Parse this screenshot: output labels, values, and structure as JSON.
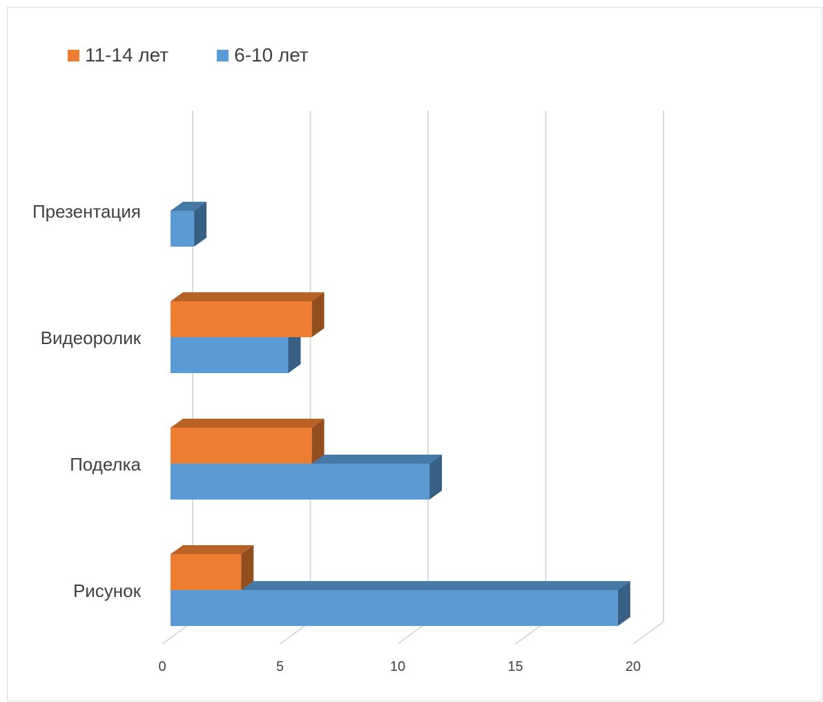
{
  "chart_data": {
    "type": "bar",
    "orientation": "horizontal",
    "style": "3d",
    "categories": [
      "Презентация",
      "Видеоролик",
      "Поделка",
      "Рисунок"
    ],
    "series": [
      {
        "name": "11-14 лет",
        "color": "#ED7D31",
        "values": [
          0,
          6,
          6,
          3
        ]
      },
      {
        "name": "6-10 лет",
        "color": "#5B9BD5",
        "values": [
          1,
          5,
          11,
          19
        ]
      }
    ],
    "xticks": [
      "0",
      "5",
      "10",
      "15",
      "20"
    ],
    "xlim": [
      0,
      20
    ],
    "grid": true,
    "legend_position": "top-left"
  }
}
